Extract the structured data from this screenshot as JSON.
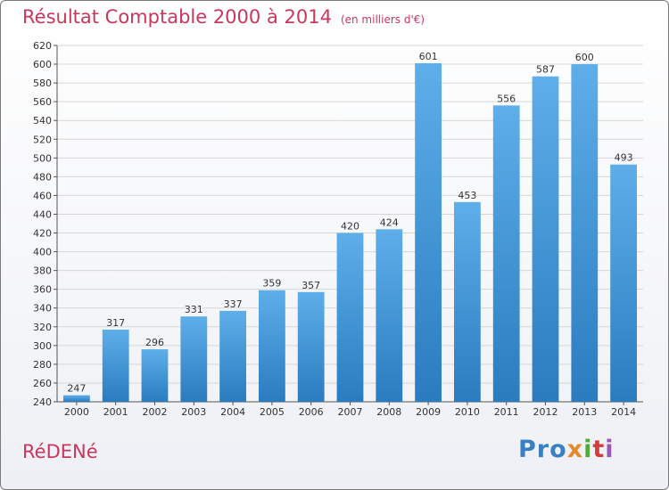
{
  "header": {
    "title": "Résultat Comptable 2000 à 2014",
    "subtitle": "(en milliers d'€)"
  },
  "footer": {
    "commune": "RéDENé",
    "logo_letters": [
      "P",
      "r",
      "o",
      "x",
      "i",
      "t",
      "i"
    ],
    "logo_colors": [
      "#3a7fc3",
      "#3a7fc3",
      "#3a7fc3",
      "#e5892e",
      "#55a83c",
      "#d43c3c",
      "#9a58b2"
    ]
  },
  "colors": {
    "bar_light": "#5eaeea",
    "bar_dark": "#2a7cbf",
    "grid": "#d6d6d6",
    "title": "#c8385c"
  },
  "chart_data": {
    "type": "bar",
    "categories": [
      "2000",
      "2001",
      "2002",
      "2003",
      "2004",
      "2005",
      "2006",
      "2007",
      "2008",
      "2009",
      "2010",
      "2011",
      "2012",
      "2013",
      "2014"
    ],
    "values": [
      247,
      317,
      296,
      331,
      337,
      359,
      357,
      420,
      424,
      601,
      453,
      556,
      587,
      600,
      493
    ],
    "ylim": [
      240,
      620
    ],
    "ytick_step": 20,
    "grid": true
  }
}
